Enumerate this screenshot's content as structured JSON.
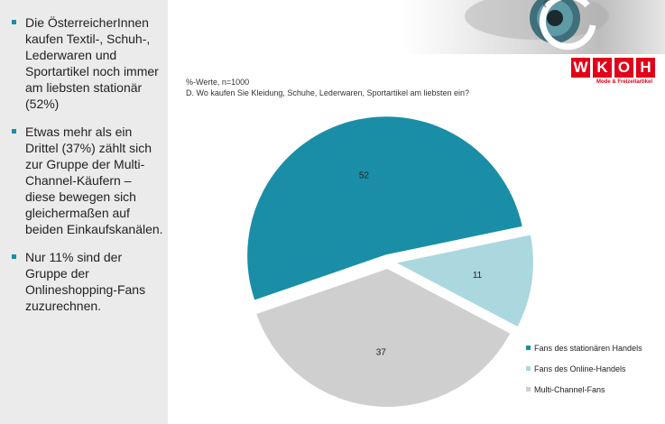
{
  "bullets": [
    "Die ÖsterreicherInnen kaufen Textil-, Schuh-, Lederwaren und Sportartikel noch immer am liebsten stationär (52%)",
    "Etwas mehr als ein Drittel (37%) zählt sich zur Gruppe der Multi-Channel-Käufern – diese bewegen sich gleichermaßen auf beiden Einkaufskanälen.",
    "Nur 11% sind der Gruppe der Onlineshopping-Fans zuzurechnen."
  ],
  "logo": {
    "letters": [
      "W",
      "K",
      "O",
      "H"
    ],
    "subtitle": "Mode & Freizeitartikel",
    "color": "#e2001a"
  },
  "chart_data": {
    "type": "pie",
    "note": "%-Werte, n=1000",
    "title": "D. Wo kaufen Sie Kleidung, Schuhe, Lederwaren, Sportartikel am liebsten ein?",
    "series": [
      {
        "name": "Fans des stationären Handels",
        "value": 52,
        "color": "#1a8ea6"
      },
      {
        "name": "Fans des Online-Handels",
        "value": 11,
        "color": "#abd7df"
      },
      {
        "name": "Multi-Channel-Fans",
        "value": 37,
        "color": "#cfcfcf"
      }
    ],
    "legend": "bottom-right"
  }
}
